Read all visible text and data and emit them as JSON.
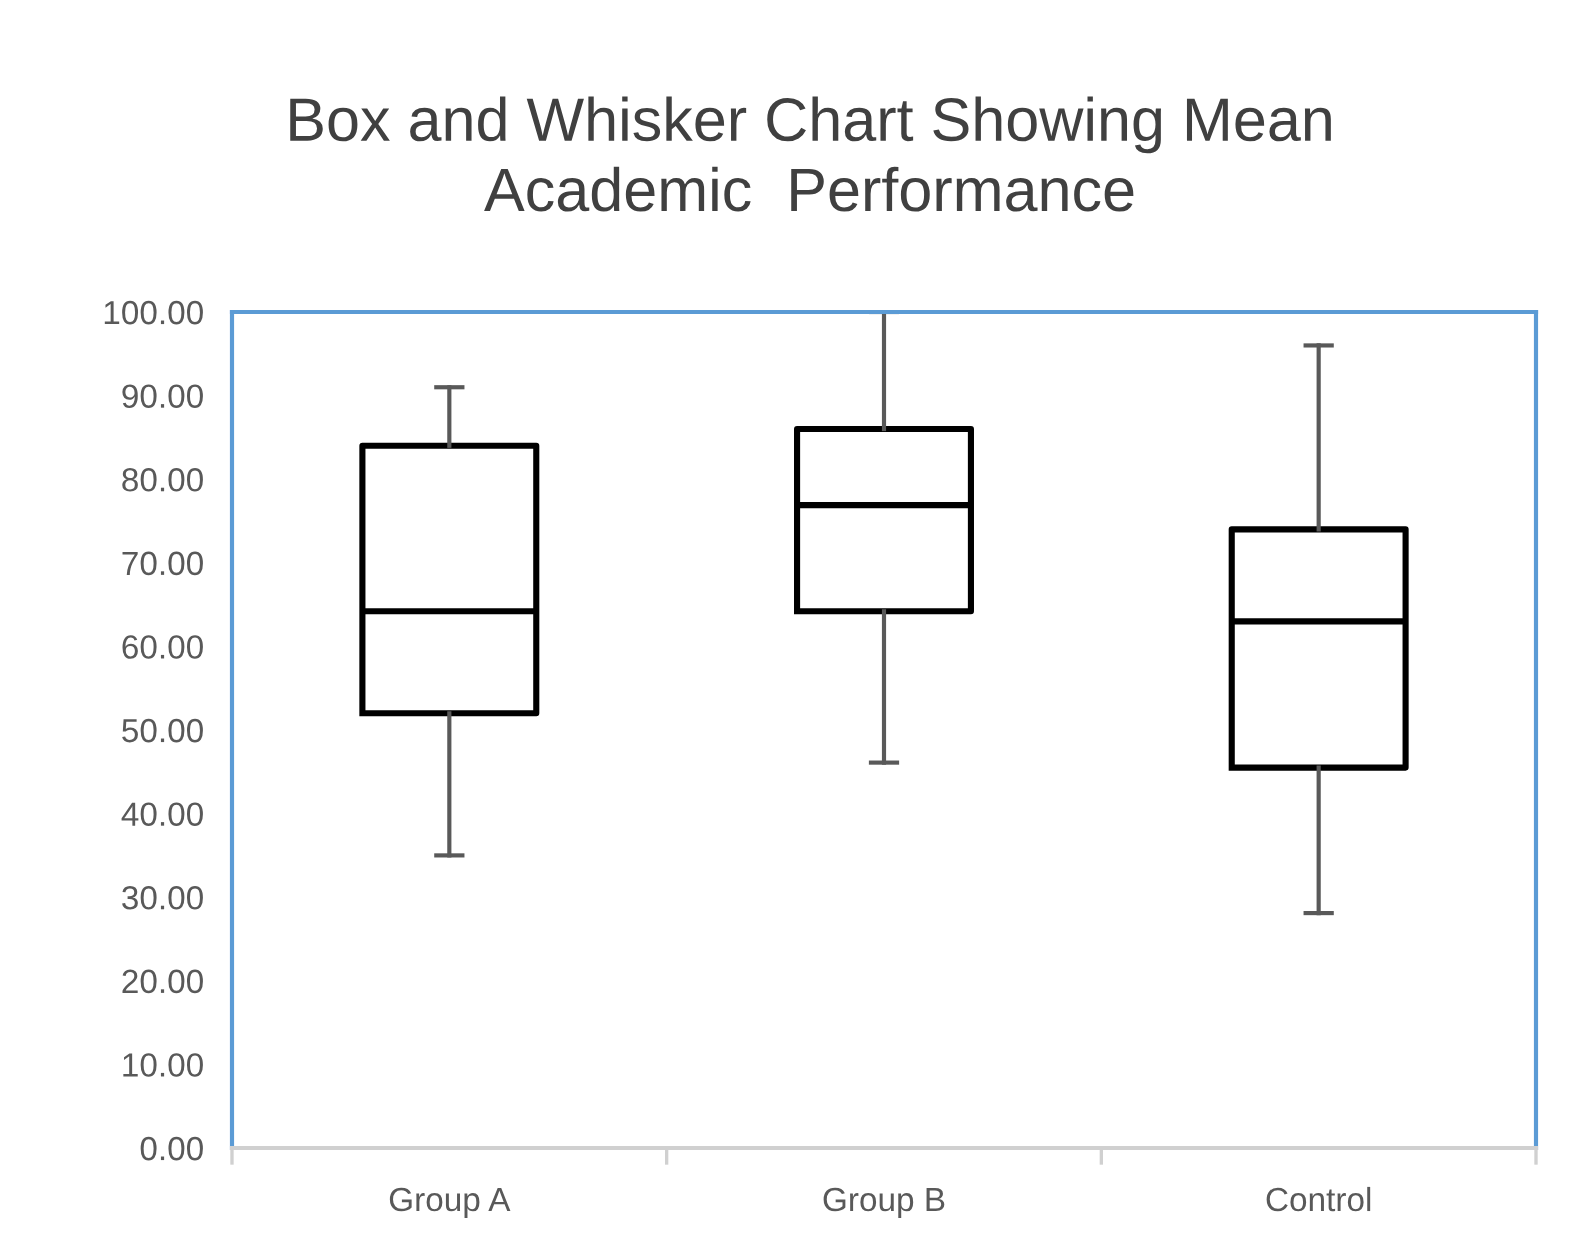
{
  "chart_data": {
    "type": "box",
    "title": "Box and Whisker Chart Showing Mean\nAcademic  Performance",
    "categories": [
      "Group A",
      "Group B",
      "Control"
    ],
    "boxes": [
      {
        "low": 35,
        "q1": 52,
        "median": 64.2,
        "q3": 84,
        "high": 91
      },
      {
        "low": 46.1,
        "q1": 64.2,
        "median": 76.9,
        "q3": 86,
        "high": 100
      },
      {
        "low": 28.1,
        "q1": 45.5,
        "median": 63,
        "q3": 74,
        "high": 96
      }
    ],
    "ylim": [
      0,
      100
    ],
    "yticks": [
      {
        "value": 0,
        "label": "0.00"
      },
      {
        "value": 10,
        "label": "10.00"
      },
      {
        "value": 20,
        "label": "20.00"
      },
      {
        "value": 30,
        "label": "30.00"
      },
      {
        "value": 40,
        "label": "40.00"
      },
      {
        "value": 50,
        "label": "50.00"
      },
      {
        "value": 60,
        "label": "60.00"
      },
      {
        "value": 70,
        "label": "70.00"
      },
      {
        "value": 80,
        "label": "80.00"
      },
      {
        "value": 90,
        "label": "90.00"
      },
      {
        "value": 100,
        "label": "100.00"
      }
    ],
    "grid": false,
    "legend": false
  }
}
